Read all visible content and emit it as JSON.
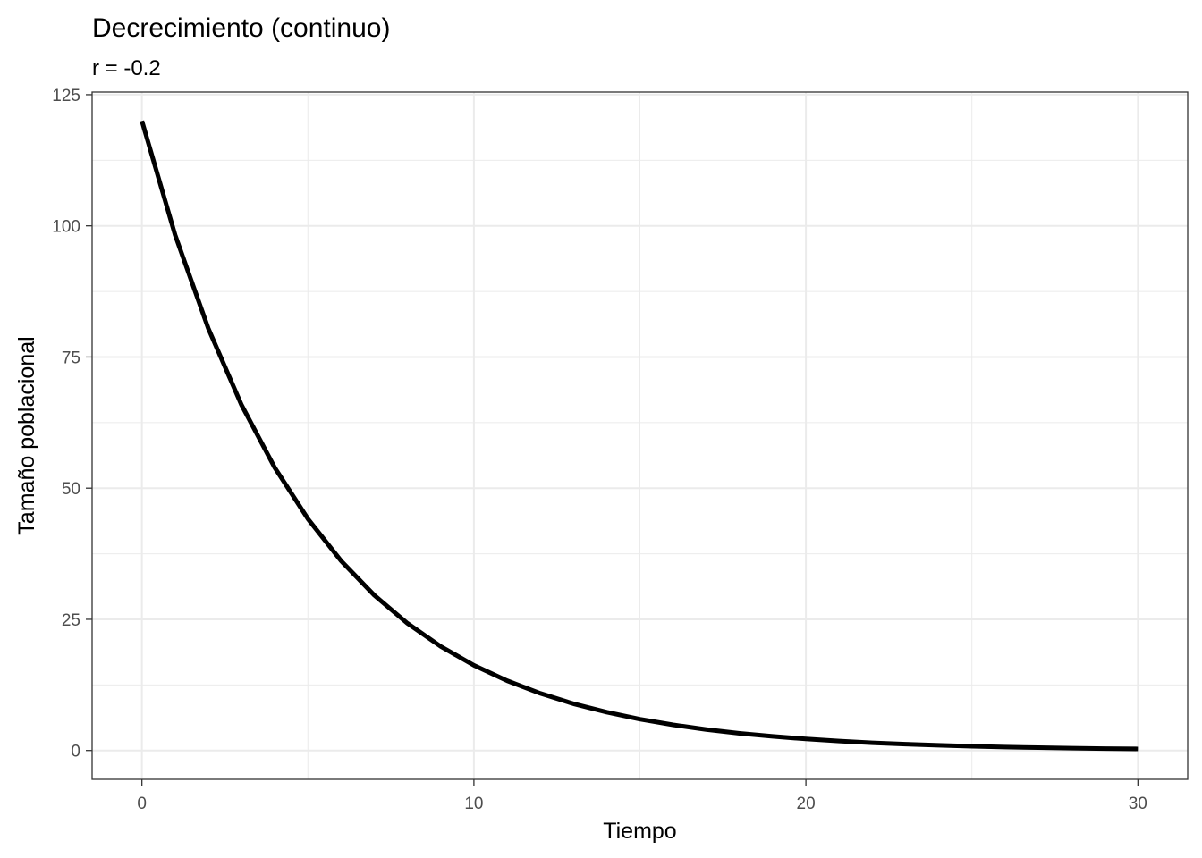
{
  "chart_data": {
    "type": "line",
    "title": "Decrecimiento (continuo)",
    "subtitle": "r = -0.2",
    "xlabel": "Tiempo",
    "ylabel": "Tamaño poblacional",
    "xlim": [
      -1.5,
      31.5
    ],
    "ylim": [
      -5.5,
      125.5
    ],
    "x_ticks": [
      0,
      10,
      20,
      30
    ],
    "x_minor_ticks": [
      5,
      15,
      25
    ],
    "y_ticks": [
      0,
      25,
      50,
      75,
      100,
      125
    ],
    "y_minor_ticks": [
      12.5,
      37.5,
      62.5,
      87.5,
      112.5
    ],
    "grid": true,
    "legend": "none",
    "line_color": "#000000",
    "series": [
      {
        "x": [
          0,
          1,
          2,
          3,
          4,
          5,
          6,
          7,
          8,
          9,
          10,
          11,
          12,
          13,
          14,
          15,
          16,
          17,
          18,
          19,
          20,
          21,
          22,
          23,
          24,
          25,
          26,
          27,
          28,
          29,
          30
        ],
        "values": [
          120,
          98.25,
          80.44,
          65.86,
          53.92,
          44.15,
          36.14,
          29.59,
          24.23,
          19.84,
          16.24,
          13.3,
          10.89,
          8.91,
          7.3,
          5.97,
          4.89,
          4.0,
          3.28,
          2.69,
          2.2,
          1.8,
          1.47,
          1.21,
          0.99,
          0.81,
          0.66,
          0.54,
          0.44,
          0.36,
          0.3
        ]
      }
    ]
  }
}
